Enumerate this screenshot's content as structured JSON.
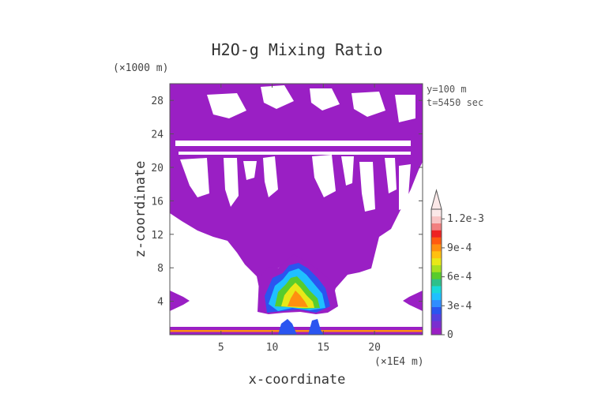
{
  "chart_data": {
    "type": "heatmap",
    "title": "H2O-g Mixing Ratio",
    "xlabel": "x-coordinate",
    "ylabel": "z-coordinate",
    "x_unit": "(×1E4 m)",
    "y_unit": "(×1000 m)",
    "x_ticks": [
      "5",
      "10",
      "15",
      "20"
    ],
    "y_ticks": [
      "4",
      "8",
      "12",
      "16",
      "20",
      "24",
      "28"
    ],
    "annotations": [
      "y=100 m",
      "t=5450 sec"
    ],
    "colorbar": {
      "labels": [
        "0",
        "3e-4",
        "6e-4",
        "9e-4",
        "1.2e-3"
      ],
      "range": [
        0,
        0.0013
      ],
      "extend": "max",
      "colors": [
        "#9a1fc4",
        "#7a2fd0",
        "#5540e0",
        "#2a55f0",
        "#2f8dff",
        "#1fc0ff",
        "#19d9d9",
        "#2ec08a",
        "#58cc2c",
        "#a8e020",
        "#e8e818",
        "#ffc010",
        "#ff8f10",
        "#ff5a10",
        "#ee2222",
        "#f27f7f",
        "#f8c4c4",
        "#fbe8e8"
      ]
    },
    "grid": false,
    "legend": "right"
  }
}
